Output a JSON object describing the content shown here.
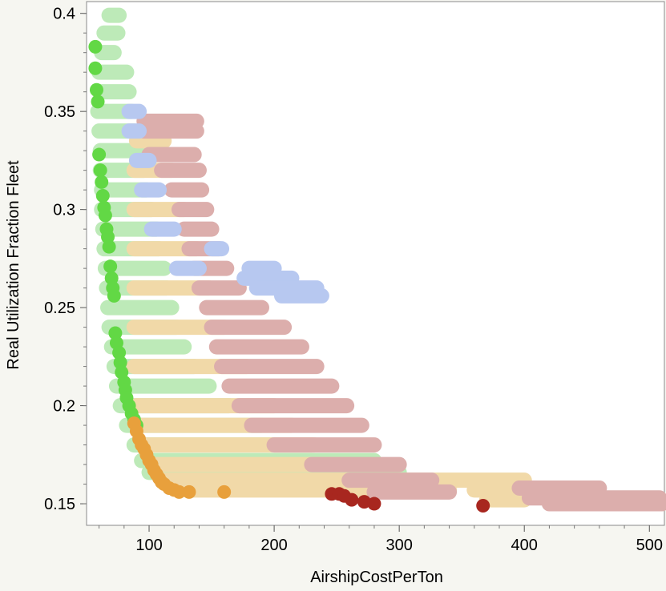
{
  "chart_data": {
    "type": "scatter",
    "title": "",
    "xlabel": "AirshipCostPerTon",
    "ylabel": "Real Utilization Fraction Fleet",
    "xlim": [
      50,
      512
    ],
    "ylim": [
      0.139,
      0.406
    ],
    "x_ticks": [
      100,
      200,
      300,
      400,
      500
    ],
    "x_tick_labels": [
      "100",
      "200",
      "300",
      "400",
      "500"
    ],
    "y_ticks": [
      0.15,
      0.2,
      0.25,
      0.3,
      0.35,
      0.4
    ],
    "y_tick_labels": [
      "0.15",
      "0.2",
      "0.25",
      "0.3",
      "0.35",
      "0.4"
    ],
    "grid": false,
    "legend": "none",
    "colors": {
      "light_green": "#bdeab8",
      "light_blue": "#b7c8f0",
      "pink": "#dcaeac",
      "tan": "#f1d9a8",
      "bright_green": "#62d845",
      "orange": "#e8a03c",
      "dark_red": "#a8271f"
    },
    "series": [
      {
        "color": "light_green",
        "bands": [
          {
            "y": 0.399,
            "x0": 68,
            "x1": 76
          },
          {
            "y": 0.39,
            "x0": 64,
            "x1": 75
          },
          {
            "y": 0.38,
            "x0": 62,
            "x1": 72
          },
          {
            "y": 0.37,
            "x0": 60,
            "x1": 82
          },
          {
            "y": 0.36,
            "x0": 60,
            "x1": 84
          },
          {
            "y": 0.35,
            "x0": 59,
            "x1": 86
          },
          {
            "y": 0.34,
            "x0": 60,
            "x1": 88
          },
          {
            "y": 0.33,
            "x0": 61,
            "x1": 92
          },
          {
            "y": 0.32,
            "x0": 61,
            "x1": 96
          },
          {
            "y": 0.31,
            "x0": 62,
            "x1": 98
          },
          {
            "y": 0.3,
            "x0": 62,
            "x1": 102
          },
          {
            "y": 0.29,
            "x0": 63,
            "x1": 106
          },
          {
            "y": 0.28,
            "x0": 64,
            "x1": 108
          },
          {
            "y": 0.27,
            "x0": 65,
            "x1": 112
          },
          {
            "y": 0.26,
            "x0": 66,
            "x1": 114
          },
          {
            "y": 0.25,
            "x0": 67,
            "x1": 118
          },
          {
            "y": 0.24,
            "x0": 68,
            "x1": 122
          },
          {
            "y": 0.23,
            "x0": 70,
            "x1": 128
          },
          {
            "y": 0.22,
            "x0": 72,
            "x1": 136
          },
          {
            "y": 0.21,
            "x0": 74,
            "x1": 148
          },
          {
            "y": 0.2,
            "x0": 77,
            "x1": 164
          },
          {
            "y": 0.19,
            "x0": 82,
            "x1": 190
          },
          {
            "y": 0.18,
            "x0": 88,
            "x1": 230
          },
          {
            "y": 0.172,
            "x0": 94,
            "x1": 280
          },
          {
            "y": 0.166,
            "x0": 100,
            "x1": 300
          }
        ]
      },
      {
        "color": "tan",
        "bands": [
          {
            "y": 0.335,
            "x0": 90,
            "x1": 112
          },
          {
            "y": 0.32,
            "x0": 88,
            "x1": 118
          },
          {
            "y": 0.3,
            "x0": 88,
            "x1": 128
          },
          {
            "y": 0.28,
            "x0": 88,
            "x1": 138
          },
          {
            "y": 0.26,
            "x0": 88,
            "x1": 148
          },
          {
            "y": 0.24,
            "x0": 88,
            "x1": 160
          },
          {
            "y": 0.22,
            "x0": 88,
            "x1": 178
          },
          {
            "y": 0.2,
            "x0": 90,
            "x1": 200
          },
          {
            "y": 0.19,
            "x0": 92,
            "x1": 214
          },
          {
            "y": 0.18,
            "x0": 96,
            "x1": 232
          },
          {
            "y": 0.17,
            "x0": 104,
            "x1": 260
          },
          {
            "y": 0.162,
            "x0": 112,
            "x1": 300
          },
          {
            "y": 0.157,
            "x0": 130,
            "x1": 340
          },
          {
            "y": 0.162,
            "x0": 300,
            "x1": 400
          },
          {
            "y": 0.157,
            "x0": 360,
            "x1": 410
          },
          {
            "y": 0.152,
            "x0": 370,
            "x1": 400
          }
        ]
      },
      {
        "color": "pink",
        "bands": [
          {
            "y": 0.345,
            "x0": 96,
            "x1": 138
          },
          {
            "y": 0.34,
            "x0": 96,
            "x1": 138
          },
          {
            "y": 0.328,
            "x0": 100,
            "x1": 136
          },
          {
            "y": 0.32,
            "x0": 110,
            "x1": 140
          },
          {
            "y": 0.31,
            "x0": 118,
            "x1": 142
          },
          {
            "y": 0.3,
            "x0": 124,
            "x1": 146
          },
          {
            "y": 0.29,
            "x0": 128,
            "x1": 150
          },
          {
            "y": 0.28,
            "x0": 132,
            "x1": 156
          },
          {
            "y": 0.27,
            "x0": 136,
            "x1": 162
          },
          {
            "y": 0.26,
            "x0": 140,
            "x1": 172
          },
          {
            "y": 0.25,
            "x0": 146,
            "x1": 190
          },
          {
            "y": 0.24,
            "x0": 150,
            "x1": 208
          },
          {
            "y": 0.23,
            "x0": 154,
            "x1": 222
          },
          {
            "y": 0.22,
            "x0": 158,
            "x1": 234
          },
          {
            "y": 0.21,
            "x0": 164,
            "x1": 246
          },
          {
            "y": 0.2,
            "x0": 172,
            "x1": 258
          },
          {
            "y": 0.19,
            "x0": 182,
            "x1": 270
          },
          {
            "y": 0.18,
            "x0": 200,
            "x1": 280
          },
          {
            "y": 0.17,
            "x0": 230,
            "x1": 300
          },
          {
            "y": 0.162,
            "x0": 260,
            "x1": 326
          },
          {
            "y": 0.156,
            "x0": 280,
            "x1": 340
          },
          {
            "y": 0.158,
            "x0": 396,
            "x1": 460
          },
          {
            "y": 0.153,
            "x0": 404,
            "x1": 508
          },
          {
            "y": 0.15,
            "x0": 420,
            "x1": 510
          }
        ]
      },
      {
        "color": "light_blue",
        "bands": [
          {
            "y": 0.35,
            "x0": 84,
            "x1": 92
          },
          {
            "y": 0.34,
            "x0": 84,
            "x1": 92
          },
          {
            "y": 0.325,
            "x0": 90,
            "x1": 100
          },
          {
            "y": 0.31,
            "x0": 94,
            "x1": 108
          },
          {
            "y": 0.29,
            "x0": 102,
            "x1": 120
          },
          {
            "y": 0.28,
            "x0": 150,
            "x1": 158
          },
          {
            "y": 0.27,
            "x0": 122,
            "x1": 140
          },
          {
            "y": 0.27,
            "x0": 180,
            "x1": 200
          },
          {
            "y": 0.265,
            "x0": 176,
            "x1": 214
          },
          {
            "y": 0.26,
            "x0": 186,
            "x1": 234
          },
          {
            "y": 0.256,
            "x0": 206,
            "x1": 238
          }
        ]
      },
      {
        "color": "bright_green",
        "points": [
          [
            57,
            0.383
          ],
          [
            57,
            0.372
          ],
          [
            58,
            0.361
          ],
          [
            59,
            0.355
          ],
          [
            60,
            0.328
          ],
          [
            61,
            0.32
          ],
          [
            62,
            0.314
          ],
          [
            63,
            0.307
          ],
          [
            64,
            0.301
          ],
          [
            65,
            0.297
          ],
          [
            66,
            0.29
          ],
          [
            67,
            0.286
          ],
          [
            68,
            0.281
          ],
          [
            69,
            0.271
          ],
          [
            70,
            0.265
          ],
          [
            71,
            0.26
          ],
          [
            72,
            0.256
          ],
          [
            73,
            0.237
          ],
          [
            74,
            0.232
          ],
          [
            76,
            0.227
          ],
          [
            77,
            0.222
          ],
          [
            78,
            0.217
          ],
          [
            80,
            0.212
          ],
          [
            81,
            0.208
          ],
          [
            82,
            0.204
          ],
          [
            84,
            0.2
          ],
          [
            86,
            0.196
          ],
          [
            88,
            0.193
          ],
          [
            90,
            0.19
          ]
        ]
      },
      {
        "color": "orange",
        "points": [
          [
            88,
            0.191
          ],
          [
            90,
            0.187
          ],
          [
            92,
            0.183
          ],
          [
            94,
            0.18
          ],
          [
            96,
            0.178
          ],
          [
            98,
            0.175
          ],
          [
            100,
            0.172
          ],
          [
            102,
            0.17
          ],
          [
            104,
            0.167
          ],
          [
            106,
            0.165
          ],
          [
            108,
            0.163
          ],
          [
            110,
            0.161
          ],
          [
            112,
            0.16
          ],
          [
            116,
            0.158
          ],
          [
            120,
            0.157
          ],
          [
            124,
            0.156
          ],
          [
            132,
            0.156
          ],
          [
            160,
            0.156
          ]
        ]
      },
      {
        "color": "dark_red",
        "points": [
          [
            246,
            0.155
          ],
          [
            252,
            0.155
          ],
          [
            256,
            0.154
          ],
          [
            262,
            0.152
          ],
          [
            272,
            0.151
          ],
          [
            280,
            0.15
          ],
          [
            367,
            0.149
          ]
        ]
      }
    ]
  }
}
